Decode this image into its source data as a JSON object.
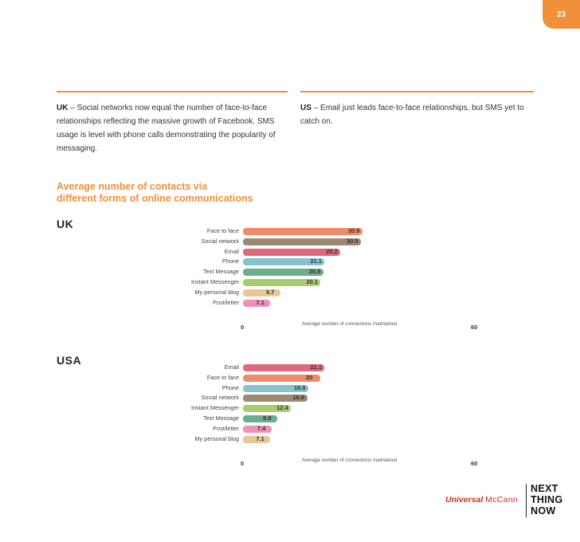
{
  "page_number": "23",
  "intro": {
    "uk_lead": "UK",
    "uk_text": " – Social networks now equal the number of face-to-face relationships reflecting the massive growth of Facebook. SMS usage is level with phone calls demonstrating the popularity of messaging.",
    "us_lead": "US",
    "us_text": " – Email just leads face-to-face relationships, but SMS yet to catch on."
  },
  "section_title_line1": "Average number of contacts via",
  "section_title_line2": "different forms of online communications",
  "colors": {
    "accent": "#f0903a",
    "brand_red": "#d52b1e"
  },
  "chart_data": [
    {
      "type": "bar",
      "orientation": "horizontal",
      "title": "UK",
      "xlabel": "Average number of connections maintained",
      "xlim": [
        0,
        60
      ],
      "x_ticks": [
        "0",
        "60"
      ],
      "categories": [
        "Face to face",
        "Social network",
        "Email",
        "Phone",
        "Text Message",
        "Instant Messenger",
        "My personal blog",
        "Post/letter"
      ],
      "values": [
        30.9,
        30.5,
        25.2,
        21.1,
        20.8,
        20.1,
        9.7,
        7.1
      ],
      "value_labels": [
        "30.9",
        "30.5",
        "25.2",
        "21.1",
        "20.8",
        "20.1",
        "9.7",
        "7.1"
      ],
      "colors": [
        "#ef8a6b",
        "#9d8872",
        "#e0687c",
        "#86c3d0",
        "#6aae8d",
        "#a8cd6f",
        "#e5c895",
        "#ef8fba"
      ],
      "grid": false
    },
    {
      "type": "bar",
      "orientation": "horizontal",
      "title": "USA",
      "xlabel": "Average number of connections maintained",
      "xlim": [
        0,
        60
      ],
      "x_ticks": [
        "0",
        "60"
      ],
      "categories": [
        "Email",
        "Face to face",
        "Phone",
        "Social network",
        "Instant Messenger",
        "Text Message",
        "Post/letter",
        "My personal blog"
      ],
      "values": [
        21.1,
        20,
        16.9,
        16.6,
        12.4,
        8.9,
        7.4,
        7.1
      ],
      "value_labels": [
        "21.1",
        "20",
        "16.9",
        "16.6",
        "12.4",
        "8.9",
        "7.4",
        "7.1"
      ],
      "colors": [
        "#e0687c",
        "#ef8a6b",
        "#86c3d0",
        "#9d8872",
        "#a8cd6f",
        "#6aae8d",
        "#ef8fba",
        "#e5c895"
      ],
      "grid": false
    }
  ],
  "brand": {
    "universal": "Universal",
    "mccann": "McCann",
    "ntn_line1": "NEXT",
    "ntn_line2": "THING",
    "ntn_line3": "NOW"
  }
}
